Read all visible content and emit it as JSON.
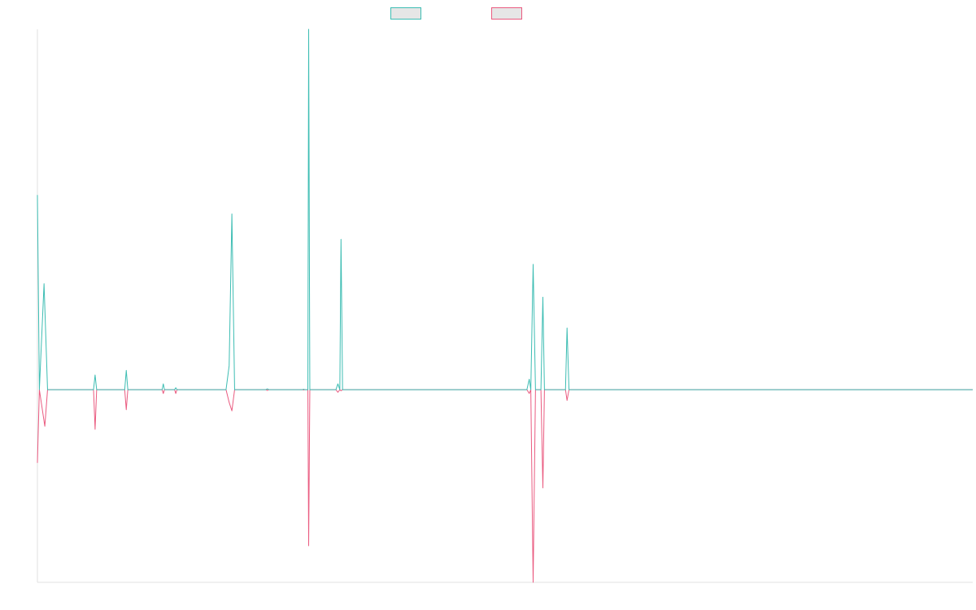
{
  "colors": {
    "series_a": "#3dbdb3",
    "series_b": "#ea5b80",
    "axis": "#e0e0e0",
    "swatch_fill": "#e6e6e6"
  },
  "legend": {
    "placement": "top-center",
    "items": [
      {
        "name": "",
        "color": "#3dbdb3"
      },
      {
        "name": "",
        "color": "#ea5b80"
      }
    ]
  },
  "chart_data": {
    "type": "line",
    "title": "",
    "xlabel": "",
    "ylabel": "",
    "grid": false,
    "xlim": [
      0,
      240
    ],
    "ylim": [
      -500,
      935
    ],
    "baseline": 0,
    "series": [
      {
        "name": "",
        "color": "#3dbdb3",
        "points": [
          [
            0,
            505
          ],
          [
            0.5,
            0
          ],
          [
            1.7,
            275
          ],
          [
            2.6,
            0
          ],
          [
            14.4,
            0
          ],
          [
            14.8,
            38
          ],
          [
            15.2,
            0
          ],
          [
            22.4,
            0
          ],
          [
            22.8,
            50
          ],
          [
            23.2,
            0
          ],
          [
            32.0,
            0
          ],
          [
            32.3,
            15
          ],
          [
            32.6,
            0
          ],
          [
            35.2,
            0
          ],
          [
            35.5,
            5
          ],
          [
            35.8,
            0
          ],
          [
            48.4,
            0
          ],
          [
            49.2,
            62
          ],
          [
            49.9,
            456
          ],
          [
            50.6,
            0
          ],
          [
            58.6,
            0
          ],
          [
            59.0,
            2
          ],
          [
            59.4,
            0
          ],
          [
            68.0,
            0
          ],
          [
            68.3,
            1
          ],
          [
            68.6,
            0
          ],
          [
            69.4,
            0
          ],
          [
            69.6,
            935
          ],
          [
            69.9,
            0
          ],
          [
            76.6,
            0
          ],
          [
            77.1,
            15
          ],
          [
            77.6,
            0
          ],
          [
            77.9,
            390
          ],
          [
            78.3,
            0
          ],
          [
            125.6,
            0
          ],
          [
            126.2,
            27
          ],
          [
            126.6,
            0
          ],
          [
            127.2,
            325
          ],
          [
            127.8,
            0
          ],
          [
            129.2,
            0
          ],
          [
            129.7,
            240
          ],
          [
            130.1,
            0
          ],
          [
            135.5,
            0
          ],
          [
            135.9,
            160
          ],
          [
            136.4,
            0
          ],
          [
            240,
            0
          ]
        ]
      },
      {
        "name": "",
        "color": "#ea5b80",
        "points": [
          [
            0,
            -190
          ],
          [
            0.5,
            0
          ],
          [
            1.9,
            -95
          ],
          [
            2.6,
            0
          ],
          [
            14.4,
            0
          ],
          [
            14.8,
            -103
          ],
          [
            15.2,
            0
          ],
          [
            22.4,
            0
          ],
          [
            22.8,
            -52
          ],
          [
            23.2,
            0
          ],
          [
            32.0,
            0
          ],
          [
            32.3,
            -10
          ],
          [
            32.6,
            0
          ],
          [
            35.2,
            0
          ],
          [
            35.5,
            -10
          ],
          [
            35.8,
            0
          ],
          [
            48.4,
            0
          ],
          [
            49.2,
            -33
          ],
          [
            49.9,
            -55
          ],
          [
            50.6,
            0
          ],
          [
            58.6,
            0
          ],
          [
            59.0,
            -2
          ],
          [
            59.4,
            0
          ],
          [
            68.0,
            0
          ],
          [
            68.3,
            -1
          ],
          [
            68.6,
            0
          ],
          [
            69.4,
            0
          ],
          [
            69.6,
            -405
          ],
          [
            69.9,
            0
          ],
          [
            76.6,
            0
          ],
          [
            77.1,
            -7
          ],
          [
            77.6,
            0
          ],
          [
            77.9,
            -3
          ],
          [
            78.3,
            0
          ],
          [
            125.6,
            0
          ],
          [
            126.2,
            -10
          ],
          [
            126.6,
            0
          ],
          [
            127.2,
            -500
          ],
          [
            127.8,
            0
          ],
          [
            129.2,
            0
          ],
          [
            129.7,
            -255
          ],
          [
            130.1,
            0
          ],
          [
            135.5,
            0
          ],
          [
            135.9,
            -28
          ],
          [
            136.4,
            0
          ],
          [
            240,
            0
          ]
        ]
      }
    ]
  }
}
